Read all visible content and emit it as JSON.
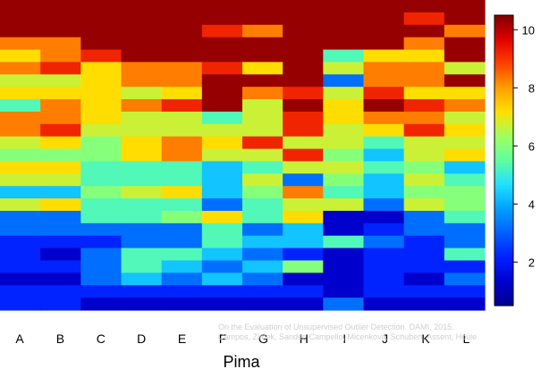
{
  "chart_data": {
    "type": "heatmap",
    "xlabel": "Pima",
    "ylabel": "",
    "categories": [
      "A",
      "B",
      "C",
      "D",
      "E",
      "F",
      "G",
      "H",
      "I",
      "J",
      "K",
      "L"
    ],
    "colorbar": {
      "min": 0.5,
      "max": 10.5,
      "ticks": [
        2,
        4,
        6,
        8,
        10
      ],
      "colors": [
        "#00008F",
        "#0000D0",
        "#0020FF",
        "#0060FF",
        "#00A0FF",
        "#20E0FF",
        "#60FFA0",
        "#A0FF60",
        "#FFE000",
        "#FF9F00",
        "#FF4000",
        "#E00000",
        "#800000"
      ]
    },
    "rows_top_to_bottom": [
      [
        10.3,
        10.3,
        10.3,
        10.3,
        10.3,
        10.3,
        10.3,
        10.3,
        10.3,
        10.3,
        10.3,
        10.3
      ],
      [
        10.3,
        10.3,
        10.3,
        10.3,
        10.3,
        10.3,
        10.3,
        10.3,
        10.3,
        10.3,
        9.2,
        10.3
      ],
      [
        10.3,
        10.3,
        10.3,
        10.3,
        10.3,
        9.2,
        8.3,
        10.3,
        10.3,
        10.3,
        10.3,
        8.3
      ],
      [
        8.3,
        8.3,
        10.3,
        10.3,
        10.3,
        10.3,
        10.3,
        10.3,
        10.3,
        10.3,
        8.3,
        10.3
      ],
      [
        7.2,
        8.3,
        9.2,
        10.3,
        10.3,
        10.3,
        10.3,
        10.3,
        5.3,
        7.2,
        7.2,
        10.3
      ],
      [
        8.3,
        9.2,
        7.2,
        8.3,
        8.3,
        9.2,
        7.2,
        10.3,
        6.7,
        8.3,
        8.3,
        6.7
      ],
      [
        6.7,
        6.7,
        7.2,
        8.3,
        8.3,
        10.3,
        10.3,
        10.3,
        3.2,
        8.3,
        8.3,
        10.3
      ],
      [
        7.2,
        7.2,
        7.2,
        6.7,
        7.2,
        10.3,
        8.3,
        9.2,
        6.7,
        9.2,
        7.2,
        7.2
      ],
      [
        5.3,
        8.3,
        7.2,
        8.3,
        9.2,
        10.3,
        6.7,
        10.3,
        7.2,
        10.3,
        9.2,
        8.3
      ],
      [
        8.3,
        8.3,
        7.2,
        6.7,
        6.7,
        5.3,
        6.7,
        9.2,
        7.2,
        8.3,
        8.3,
        6.7
      ],
      [
        8.3,
        9.2,
        6.7,
        6.7,
        6.7,
        6.7,
        6.7,
        9.2,
        6.7,
        7.2,
        9.2,
        7.2
      ],
      [
        6.7,
        7.2,
        6.0,
        7.2,
        8.3,
        7.2,
        9.2,
        6.7,
        6.7,
        5.3,
        6.7,
        6.7
      ],
      [
        6.0,
        6.0,
        6.0,
        7.2,
        8.3,
        6.7,
        6.7,
        9.2,
        6.0,
        4.3,
        6.7,
        7.2
      ],
      [
        7.2,
        7.2,
        5.3,
        5.3,
        5.3,
        4.3,
        5.3,
        6.7,
        6.7,
        5.3,
        6.0,
        4.3
      ],
      [
        6.7,
        6.7,
        5.3,
        5.3,
        5.3,
        4.3,
        6.7,
        3.2,
        6.0,
        4.3,
        6.7,
        5.3
      ],
      [
        4.3,
        4.3,
        6.0,
        6.7,
        7.2,
        4.3,
        6.0,
        8.3,
        5.3,
        4.3,
        6.0,
        6.0
      ],
      [
        6.7,
        7.2,
        5.3,
        5.3,
        5.3,
        3.2,
        5.3,
        6.7,
        6.7,
        3.2,
        6.7,
        6.0
      ],
      [
        3.2,
        3.2,
        5.3,
        5.3,
        6.0,
        7.2,
        5.3,
        7.2,
        1.3,
        1.3,
        3.2,
        5.3
      ],
      [
        3.2,
        3.2,
        3.2,
        3.2,
        3.2,
        5.3,
        3.2,
        4.3,
        1.3,
        2.2,
        3.2,
        3.2
      ],
      [
        2.2,
        2.2,
        2.2,
        3.2,
        3.2,
        5.3,
        4.3,
        4.3,
        5.3,
        3.2,
        2.2,
        3.2
      ],
      [
        2.2,
        1.3,
        3.2,
        5.3,
        5.3,
        4.3,
        3.2,
        2.2,
        1.3,
        2.2,
        2.2,
        5.3
      ],
      [
        2.2,
        2.2,
        3.2,
        5.3,
        4.3,
        3.2,
        4.3,
        6.0,
        1.3,
        2.2,
        2.2,
        2.2
      ],
      [
        1.3,
        1.3,
        3.2,
        4.3,
        3.2,
        4.3,
        3.2,
        1.3,
        1.3,
        2.2,
        1.3,
        3.2
      ],
      [
        2.2,
        2.2,
        2.2,
        2.2,
        2.2,
        2.2,
        2.2,
        2.2,
        1.3,
        2.2,
        2.2,
        2.2
      ],
      [
        2.2,
        2.2,
        1.3,
        1.3,
        1.3,
        1.3,
        1.3,
        1.3,
        3.2,
        1.3,
        1.3,
        1.3
      ]
    ]
  },
  "credit": {
    "line1": "On the Evaluation of Unsupervised Outlier Detection. DAMI, 2015.",
    "line2": "Campos, Zimek, Sander, Campello, Micenková, Schubert, Assent, Houle"
  }
}
